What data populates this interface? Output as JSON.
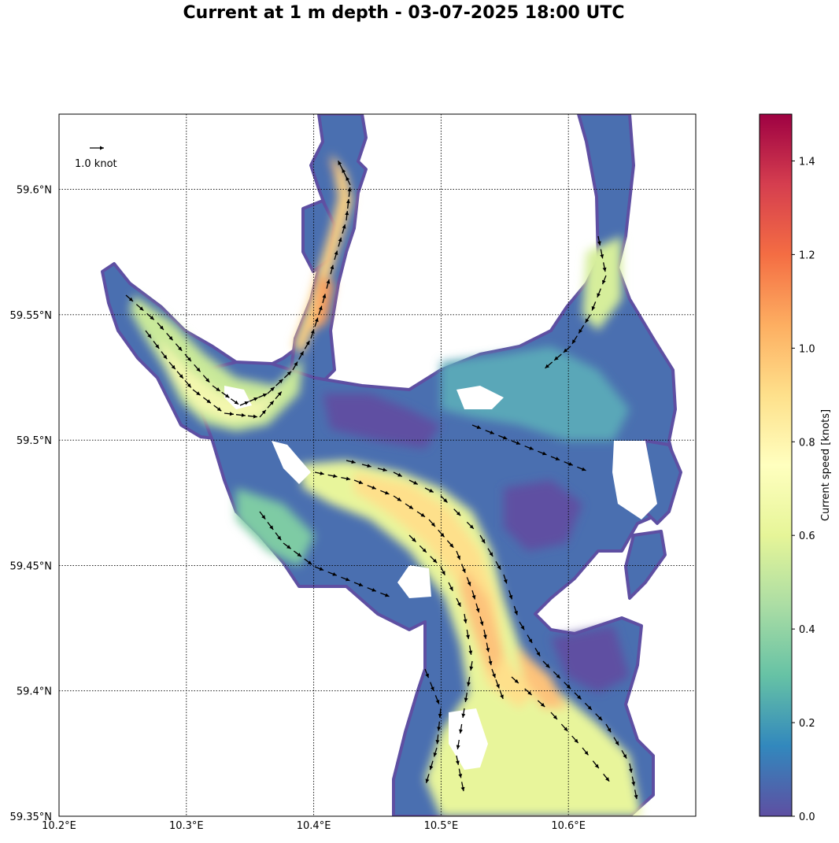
{
  "title": "Current at 1 m depth - 03-07-2025 18:00 UTC",
  "map": {
    "lon_range": [
      10.2,
      10.7
    ],
    "lat_range": [
      59.35,
      59.63
    ],
    "x_ticks": [
      {
        "value": 10.2,
        "label": "10.2°E"
      },
      {
        "value": 10.3,
        "label": "10.3°E"
      },
      {
        "value": 10.4,
        "label": "10.4°E"
      },
      {
        "value": 10.5,
        "label": "10.5°E"
      },
      {
        "value": 10.6,
        "label": "10.6°E"
      }
    ],
    "y_ticks": [
      {
        "value": 59.35,
        "label": "59.35°N"
      },
      {
        "value": 59.4,
        "label": "59.4°N"
      },
      {
        "value": 59.45,
        "label": "59.45°N"
      },
      {
        "value": 59.5,
        "label": "59.5°N"
      },
      {
        "value": 59.55,
        "label": "59.55°N"
      },
      {
        "value": 59.6,
        "label": "59.6°N"
      }
    ],
    "grid": true,
    "quiver_key": {
      "label": "1.0 knot",
      "value": 1.0
    }
  },
  "colorbar": {
    "label": "Current speed [knots]",
    "range": [
      0,
      1.5
    ],
    "ticks": [
      {
        "value": 0.0,
        "label": "0.0"
      },
      {
        "value": 0.2,
        "label": "0.2"
      },
      {
        "value": 0.4,
        "label": "0.4"
      },
      {
        "value": 0.6,
        "label": "0.6"
      },
      {
        "value": 0.8,
        "label": "0.8"
      },
      {
        "value": 1.0,
        "label": "1.0"
      },
      {
        "value": 1.2,
        "label": "1.2"
      },
      {
        "value": 1.4,
        "label": "1.4"
      }
    ],
    "colors": [
      "#5e4fa2",
      "#3288bd",
      "#66c2a5",
      "#abdda4",
      "#e6f598",
      "#ffffbf",
      "#fee08b",
      "#fdae61",
      "#f46d43",
      "#d53e4f",
      "#9e0142"
    ]
  }
}
